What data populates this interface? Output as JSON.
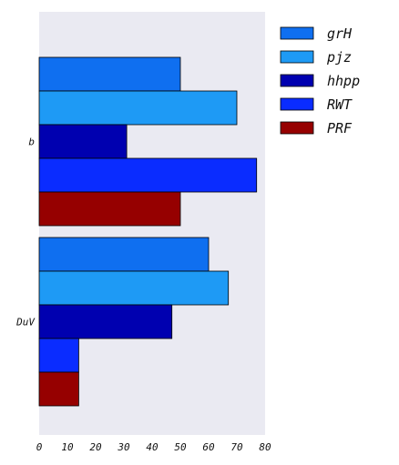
{
  "chart_data": {
    "type": "bar",
    "orientation": "horizontal",
    "categories": [
      "b",
      "DuV"
    ],
    "series": [
      {
        "name": "grH",
        "color": "#0f6ff0",
        "values": [
          50,
          60
        ]
      },
      {
        "name": "pjz",
        "color": "#1e9af5",
        "values": [
          70,
          67
        ]
      },
      {
        "name": "hhpp",
        "color": "#0000b0",
        "values": [
          31,
          47
        ]
      },
      {
        "name": "RWT",
        "color": "#0a2cff",
        "values": [
          77,
          14
        ]
      },
      {
        "name": "PRF",
        "color": "#960000",
        "values": [
          50,
          14
        ]
      }
    ],
    "xlim": [
      0,
      80
    ],
    "xticks": [
      0,
      10,
      20,
      30,
      40,
      50,
      60,
      70,
      80
    ],
    "title": "",
    "xlabel": "",
    "ylabel": "",
    "grid": false,
    "legend_position": "top-right",
    "plot_background": "#eaeaf2"
  }
}
